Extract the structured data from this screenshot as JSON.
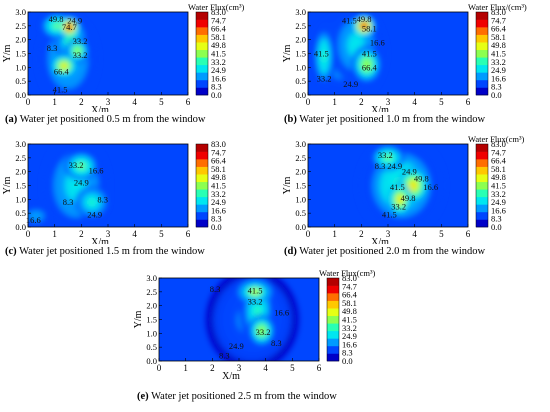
{
  "colorscale": {
    "colors": [
      "#0000c8",
      "#0046ff",
      "#009bff",
      "#00e6f0",
      "#28ffb4",
      "#8cff50",
      "#e6ff14",
      "#ffc800",
      "#ff6e00",
      "#f00000",
      "#b40000"
    ],
    "ticks": [
      "83.0",
      "74.7",
      "66.4",
      "58.1",
      "49.8",
      "41.5",
      "33.2",
      "24.9",
      "16.6",
      "8.3",
      "0.0"
    ]
  },
  "chart_data": [
    {
      "type": "heatmap",
      "panel": "a",
      "caption_letter": "(a)",
      "caption_text": "Water jet positioned 0.5 m from the window",
      "colorbar_title": "Water Flux(cm³)",
      "xlabel": "X/m",
      "ylabel": "Y/m",
      "xlim": [
        0,
        6
      ],
      "ylim": [
        0,
        3
      ],
      "xticks": [
        "0",
        "1",
        "2",
        "3",
        "4",
        "5",
        "6"
      ],
      "yticks": [
        "0.0",
        "0.5",
        "1.0",
        "1.5",
        "2.0",
        "2.5",
        "3.0"
      ],
      "hotspots": [
        {
          "x": 1.55,
          "y": 2.45,
          "value": 83.0,
          "rx": 0.28,
          "ry": 0.3
        },
        {
          "x": 1.35,
          "y": 1.05,
          "value": 60.0,
          "rx": 0.38,
          "ry": 0.35
        },
        {
          "x": 1.85,
          "y": 1.6,
          "value": 45.0,
          "rx": 0.35,
          "ry": 0.4
        },
        {
          "x": 1.1,
          "y": 2.5,
          "value": 38.0,
          "rx": 0.5,
          "ry": 0.4
        },
        {
          "x": 1.6,
          "y": 2.0,
          "value": 35.0,
          "rx": 0.5,
          "ry": 0.7
        },
        {
          "x": 1.5,
          "y": 1.3,
          "value": 25.0,
          "rx": 0.9,
          "ry": 1.4
        }
      ],
      "labels": [
        {
          "x": 1.05,
          "y": 2.75,
          "text": "49.8"
        },
        {
          "x": 1.55,
          "y": 2.45,
          "text": "74.7"
        },
        {
          "x": 0.9,
          "y": 1.7,
          "text": "8.3"
        },
        {
          "x": 1.95,
          "y": 1.95,
          "text": "33.2"
        },
        {
          "x": 1.95,
          "y": 1.45,
          "text": "33.2"
        },
        {
          "x": 1.25,
          "y": 0.85,
          "text": "66.4"
        },
        {
          "x": 1.2,
          "y": 0.2,
          "text": "41.5"
        },
        {
          "x": 1.75,
          "y": 2.7,
          "text": "24.9"
        }
      ]
    },
    {
      "type": "heatmap",
      "panel": "b",
      "caption_letter": "(b)",
      "caption_text": "Water jet positioned 1.0 m from the window",
      "colorbar_title": "Water Flux/(cm³)",
      "xlabel": "X/m",
      "ylabel": "Y/m",
      "xlim": [
        0,
        6
      ],
      "ylim": [
        0,
        3
      ],
      "xticks": [
        "0",
        "1",
        "2",
        "3",
        "4",
        "5",
        "6"
      ],
      "yticks": [
        "0.0",
        "0.5",
        "1.0",
        "1.5",
        "2.0",
        "2.5",
        "3.0"
      ],
      "hotspots": [
        {
          "x": 2.1,
          "y": 2.5,
          "value": 83.0,
          "rx": 0.3,
          "ry": 0.3
        },
        {
          "x": 2.2,
          "y": 1.1,
          "value": 45.0,
          "rx": 0.45,
          "ry": 0.6
        },
        {
          "x": 0.6,
          "y": 1.4,
          "value": 30.0,
          "rx": 0.35,
          "ry": 1.1
        },
        {
          "x": 1.8,
          "y": 1.8,
          "value": 28.0,
          "rx": 0.8,
          "ry": 1.2
        },
        {
          "x": 1.3,
          "y": 1.5,
          "value": 18.0,
          "rx": 1.3,
          "ry": 1.6
        }
      ],
      "labels": [
        {
          "x": 1.55,
          "y": 2.7,
          "text": "41.5"
        },
        {
          "x": 2.1,
          "y": 2.75,
          "text": "49.8"
        },
        {
          "x": 2.3,
          "y": 2.4,
          "text": "58.1"
        },
        {
          "x": 0.5,
          "y": 1.5,
          "text": "41.5"
        },
        {
          "x": 2.3,
          "y": 1.5,
          "text": "41.5"
        },
        {
          "x": 2.3,
          "y": 1.0,
          "text": "66.4"
        },
        {
          "x": 0.6,
          "y": 0.6,
          "text": "33.2"
        },
        {
          "x": 1.6,
          "y": 0.4,
          "text": "24.9"
        },
        {
          "x": 2.6,
          "y": 1.9,
          "text": "16.6"
        }
      ]
    },
    {
      "type": "heatmap",
      "panel": "c",
      "caption_letter": "(c)",
      "caption_text": "Water jet positioned 1.5 m from the window",
      "colorbar_title": "",
      "xlabel": "X/m",
      "ylabel": "Y/m",
      "xlim": [
        0,
        6
      ],
      "ylim": [
        0,
        3
      ],
      "xticks": [
        "0",
        "1",
        "2",
        "3",
        "4",
        "5",
        "6"
      ],
      "yticks": [
        "0.0",
        "0.5",
        "1.0",
        "1.5",
        "2.0",
        "2.5",
        "3.0"
      ],
      "hotspots": [
        {
          "x": 2.0,
          "y": 2.2,
          "value": 40.0,
          "rx": 0.5,
          "ry": 0.45
        },
        {
          "x": 2.4,
          "y": 0.9,
          "value": 32.0,
          "rx": 0.5,
          "ry": 0.5
        },
        {
          "x": 1.8,
          "y": 1.5,
          "value": 26.0,
          "rx": 1.0,
          "ry": 1.5
        },
        {
          "x": 0.3,
          "y": 0.4,
          "value": 18.0,
          "rx": 0.5,
          "ry": 0.35
        }
      ],
      "labels": [
        {
          "x": 1.8,
          "y": 2.25,
          "text": "33.2"
        },
        {
          "x": 2.55,
          "y": 2.05,
          "text": "16.6"
        },
        {
          "x": 2.0,
          "y": 1.6,
          "text": "24.9"
        },
        {
          "x": 1.5,
          "y": 0.9,
          "text": "8.3"
        },
        {
          "x": 2.8,
          "y": 1.0,
          "text": "8.3"
        },
        {
          "x": 2.5,
          "y": 0.45,
          "text": "24.9"
        },
        {
          "x": 0.2,
          "y": 0.25,
          "text": "16.6"
        }
      ]
    },
    {
      "type": "heatmap",
      "panel": "d",
      "caption_letter": "(d)",
      "caption_text": "Water jet positioned 2.0 m from the window",
      "colorbar_title": "Water Flux(cm³)",
      "xlabel": "X/m",
      "ylabel": "Y/m",
      "xlim": [
        0,
        6
      ],
      "ylim": [
        0,
        3
      ],
      "xticks": [
        "0",
        "1",
        "2",
        "3",
        "4",
        "5",
        "6"
      ],
      "yticks": [
        "0.0",
        "0.5",
        "1.0",
        "1.5",
        "2.0",
        "2.5",
        "3.0"
      ],
      "hotspots": [
        {
          "x": 3.95,
          "y": 1.5,
          "value": 60.0,
          "rx": 0.45,
          "ry": 0.55
        },
        {
          "x": 3.45,
          "y": 1.0,
          "value": 55.0,
          "rx": 0.35,
          "ry": 0.5
        },
        {
          "x": 3.0,
          "y": 2.5,
          "value": 40.0,
          "rx": 0.5,
          "ry": 0.4
        },
        {
          "x": 3.5,
          "y": 1.5,
          "value": 30.0,
          "rx": 1.3,
          "ry": 1.5
        }
      ],
      "labels": [
        {
          "x": 2.9,
          "y": 2.6,
          "text": "33.2"
        },
        {
          "x": 2.7,
          "y": 2.2,
          "text": "8.3"
        },
        {
          "x": 3.25,
          "y": 2.2,
          "text": "24.9"
        },
        {
          "x": 3.8,
          "y": 2.0,
          "text": "24.9"
        },
        {
          "x": 4.25,
          "y": 1.75,
          "text": "49.8"
        },
        {
          "x": 3.35,
          "y": 1.45,
          "text": "41.5"
        },
        {
          "x": 4.6,
          "y": 1.45,
          "text": "16.6"
        },
        {
          "x": 3.75,
          "y": 1.05,
          "text": "49.8"
        },
        {
          "x": 3.4,
          "y": 0.75,
          "text": "33.2"
        },
        {
          "x": 3.05,
          "y": 0.45,
          "text": "41.5"
        }
      ]
    },
    {
      "type": "heatmap",
      "panel": "e",
      "caption_letter": "(e)",
      "caption_text": "Water jet positioned 2.5 m from the window",
      "colorbar_title": "Water Flux(cm³)",
      "xlabel": "X/m",
      "ylabel": "Y/m",
      "xlim": [
        0,
        6
      ],
      "ylim": [
        0,
        3
      ],
      "xticks": [
        "0",
        "1",
        "2",
        "3",
        "4",
        "5",
        "6"
      ],
      "yticks": [
        "0.0",
        "0.5",
        "1.0",
        "1.5",
        "2.0",
        "2.5",
        "3.0"
      ],
      "hotspots": [
        {
          "x": 3.6,
          "y": 2.5,
          "value": 50.0,
          "rx": 0.5,
          "ry": 0.35
        },
        {
          "x": 3.85,
          "y": 1.1,
          "value": 45.0,
          "rx": 0.4,
          "ry": 0.5
        },
        {
          "x": 3.7,
          "y": 1.8,
          "value": 30.0,
          "rx": 0.55,
          "ry": 1.2
        },
        {
          "x": 3.5,
          "y": 1.5,
          "value": 15.0,
          "rx": 1.4,
          "ry": 1.6
        }
      ],
      "labels": [
        {
          "x": 2.1,
          "y": 2.6,
          "text": "8.3"
        },
        {
          "x": 3.6,
          "y": 2.55,
          "text": "41.5"
        },
        {
          "x": 3.6,
          "y": 2.15,
          "text": "33.2"
        },
        {
          "x": 4.6,
          "y": 1.75,
          "text": "16.6"
        },
        {
          "x": 3.9,
          "y": 1.05,
          "text": "33.2"
        },
        {
          "x": 2.9,
          "y": 0.55,
          "text": "24.9"
        },
        {
          "x": 4.4,
          "y": 0.65,
          "text": "8.3"
        },
        {
          "x": 2.45,
          "y": 0.2,
          "text": "8.3"
        }
      ]
    }
  ]
}
